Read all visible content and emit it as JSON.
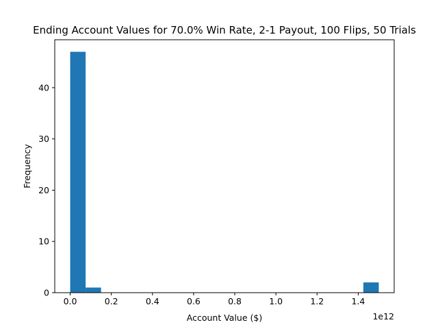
{
  "chart_data": {
    "type": "bar",
    "title": "Ending Account Values for 70.0% Win Rate, 2-1 Payout, 100 Flips, 50 Trials",
    "xlabel": "Account Value ($)",
    "ylabel": "Frequency",
    "x_offset_label": "1e12",
    "xlim": [
      -0.075,
      1.575
    ],
    "ylim": [
      0,
      49.35
    ],
    "bins": [
      {
        "x0": 0.0,
        "x1": 0.075,
        "count": 47
      },
      {
        "x0": 0.075,
        "x1": 0.15,
        "count": 1
      },
      {
        "x0": 0.15,
        "x1": 0.225,
        "count": 0
      },
      {
        "x0": 0.225,
        "x1": 0.3,
        "count": 0
      },
      {
        "x0": 0.3,
        "x1": 0.375,
        "count": 0
      },
      {
        "x0": 0.375,
        "x1": 0.45,
        "count": 0
      },
      {
        "x0": 0.45,
        "x1": 0.525,
        "count": 0
      },
      {
        "x0": 0.525,
        "x1": 0.6,
        "count": 0
      },
      {
        "x0": 0.6,
        "x1": 0.675,
        "count": 0
      },
      {
        "x0": 0.675,
        "x1": 0.75,
        "count": 0
      },
      {
        "x0": 0.75,
        "x1": 0.825,
        "count": 0
      },
      {
        "x0": 0.825,
        "x1": 0.9,
        "count": 0
      },
      {
        "x0": 0.9,
        "x1": 0.975,
        "count": 0
      },
      {
        "x0": 0.975,
        "x1": 1.05,
        "count": 0
      },
      {
        "x0": 1.05,
        "x1": 1.125,
        "count": 0
      },
      {
        "x0": 1.125,
        "x1": 1.2,
        "count": 0
      },
      {
        "x0": 1.2,
        "x1": 1.275,
        "count": 0
      },
      {
        "x0": 1.275,
        "x1": 1.35,
        "count": 0
      },
      {
        "x0": 1.35,
        "x1": 1.425,
        "count": 0
      },
      {
        "x0": 1.425,
        "x1": 1.5,
        "count": 2
      }
    ],
    "x_ticks": [
      {
        "value": 0.0,
        "label": "0.0"
      },
      {
        "value": 0.2,
        "label": "0.2"
      },
      {
        "value": 0.4,
        "label": "0.4"
      },
      {
        "value": 0.6,
        "label": "0.6"
      },
      {
        "value": 0.8,
        "label": "0.8"
      },
      {
        "value": 1.0,
        "label": "1.0"
      },
      {
        "value": 1.2,
        "label": "1.2"
      },
      {
        "value": 1.4,
        "label": "1.4"
      }
    ],
    "y_ticks": [
      {
        "value": 0,
        "label": "0"
      },
      {
        "value": 10,
        "label": "10"
      },
      {
        "value": 20,
        "label": "20"
      },
      {
        "value": 30,
        "label": "30"
      },
      {
        "value": 40,
        "label": "40"
      }
    ],
    "grid": false,
    "legend": "none",
    "bar_color": "#1f77b4"
  }
}
